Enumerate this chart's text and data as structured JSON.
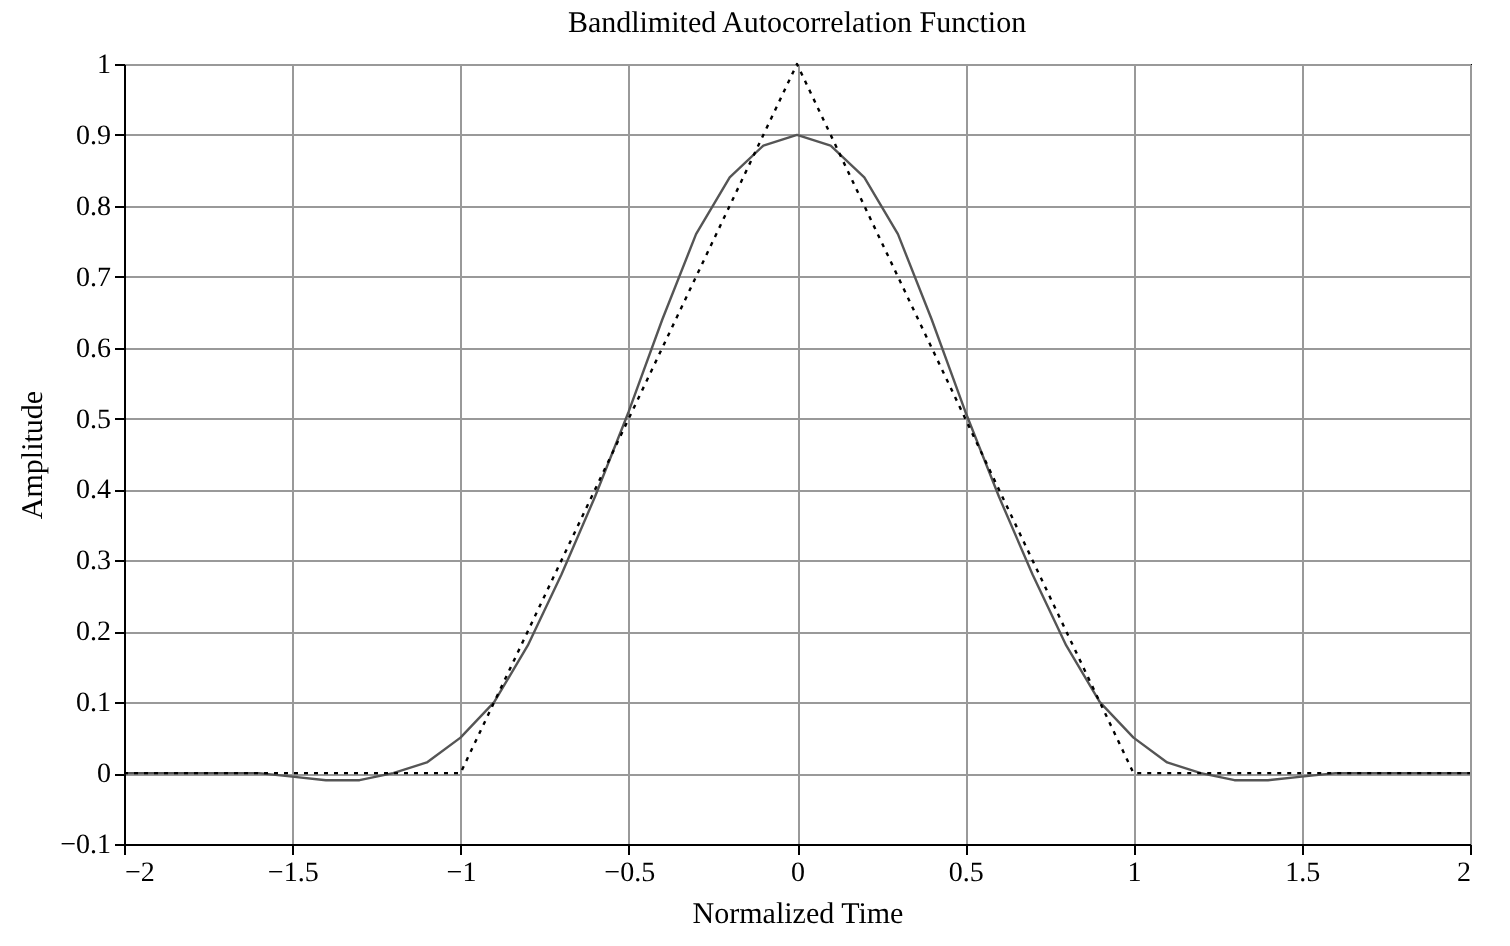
{
  "chart_data": {
    "type": "line",
    "title": "Bandlimited Autocorrelation Function",
    "xlabel": "Normalized Time",
    "ylabel": "Amplitude",
    "xlim": [
      -2,
      2
    ],
    "ylim": [
      -0.1,
      1
    ],
    "xticks": [
      -2,
      -1.5,
      -1,
      -0.5,
      0,
      0.5,
      1,
      1.5,
      2
    ],
    "yticks": [
      -0.1,
      0,
      0.1,
      0.2,
      0.3,
      0.4,
      0.5,
      0.6,
      0.7,
      0.8,
      0.9,
      1
    ],
    "grid": true,
    "series": [
      {
        "color": "#555555",
        "line_style": "solid",
        "x": [
          -2,
          -1.9,
          -1.8,
          -1.7,
          -1.6,
          -1.5,
          -1.4,
          -1.3,
          -1.2,
          -1.1,
          -1,
          -0.9,
          -0.8,
          -0.7,
          -0.6,
          -0.5,
          -0.4,
          -0.3,
          -0.2,
          -0.1,
          0,
          0.1,
          0.2,
          0.3,
          0.4,
          0.5,
          0.6,
          0.7,
          0.8,
          0.9,
          1,
          1.1,
          1.2,
          1.3,
          1.4,
          1.5,
          1.6,
          1.7,
          1.8,
          1.9,
          2
        ],
        "values": [
          0,
          0,
          0,
          0,
          0,
          -0.005,
          -0.01,
          -0.01,
          0,
          0.015,
          0.05,
          0.1,
          0.18,
          0.28,
          0.39,
          0.51,
          0.64,
          0.76,
          0.84,
          0.885,
          0.9,
          0.885,
          0.84,
          0.76,
          0.64,
          0.51,
          0.39,
          0.28,
          0.18,
          0.1,
          0.05,
          0.015,
          0,
          -0.01,
          -0.01,
          -0.005,
          0,
          0,
          0,
          0,
          0
        ]
      },
      {
        "color": "#000000",
        "line_style": "dotted",
        "x": [
          -2,
          -1,
          0,
          1,
          2
        ],
        "values": [
          0,
          0,
          1,
          0,
          0
        ]
      }
    ]
  }
}
